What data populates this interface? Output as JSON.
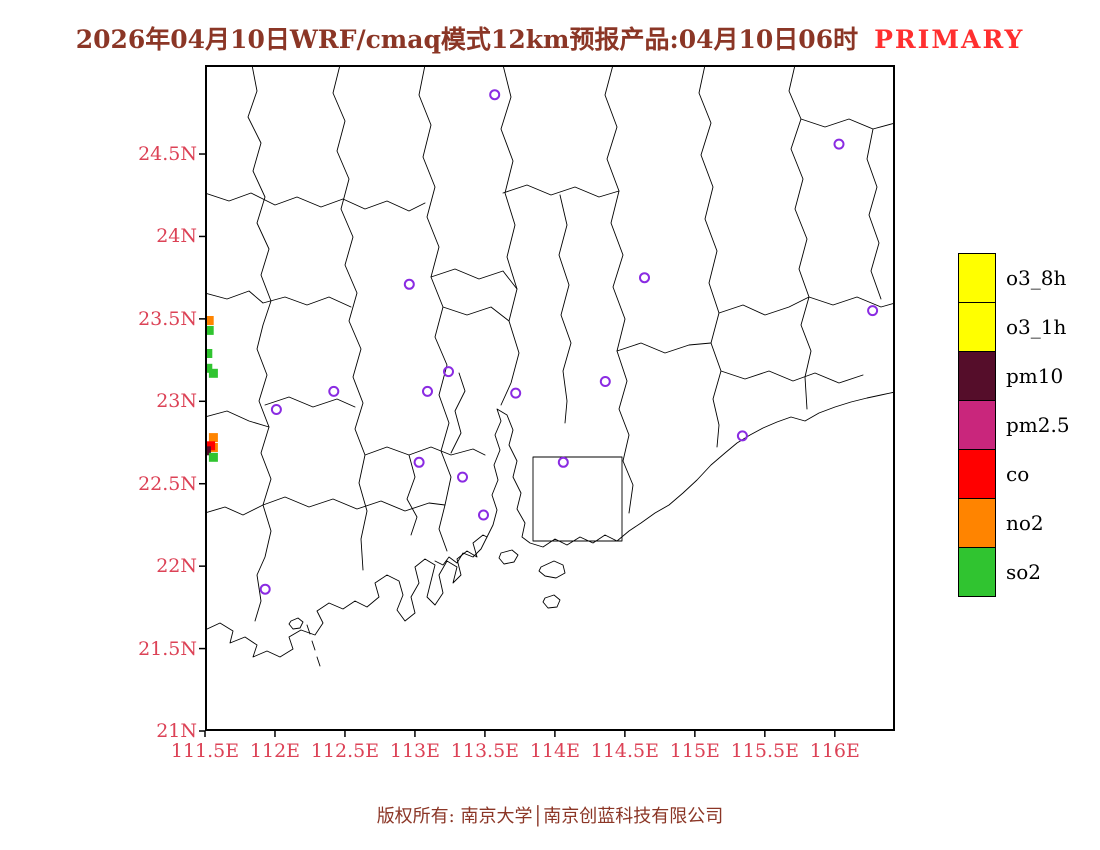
{
  "title": {
    "text": "2026年04月10日WRF/cmaq模式12km预报产品:04月10日06时",
    "tag": "PRIMARY"
  },
  "footer": {
    "text": "版权所有: 南京大学│南京创蓝科技有限公司"
  },
  "palette": {
    "title_color": "#8b3626",
    "tag_color": "#ff2f2f",
    "axis_label_color": "#dc4256",
    "station_color": "#8a2be2",
    "boundary_color": "#000000"
  },
  "map": {
    "lon_min": 111.5,
    "lon_max": 116.43,
    "lat_min": 21.0,
    "lat_max": 25.04,
    "x_ticks": [
      {
        "lon": 111.5,
        "label": "111.5E"
      },
      {
        "lon": 112.0,
        "label": "112E"
      },
      {
        "lon": 112.5,
        "label": "112.5E"
      },
      {
        "lon": 113.0,
        "label": "113E"
      },
      {
        "lon": 113.5,
        "label": "113.5E"
      },
      {
        "lon": 114.0,
        "label": "114E"
      },
      {
        "lon": 114.5,
        "label": "114.5E"
      },
      {
        "lon": 115.0,
        "label": "115E"
      },
      {
        "lon": 115.5,
        "label": "115.5E"
      },
      {
        "lon": 116.0,
        "label": "116E"
      }
    ],
    "y_ticks": [
      {
        "lat": 24.5,
        "label": "24.5N"
      },
      {
        "lat": 24.0,
        "label": "24N"
      },
      {
        "lat": 23.5,
        "label": "23.5N"
      },
      {
        "lat": 23.0,
        "label": "23N"
      },
      {
        "lat": 22.5,
        "label": "22.5N"
      },
      {
        "lat": 22.0,
        "label": "22N"
      },
      {
        "lat": 21.5,
        "label": "21.5N"
      },
      {
        "lat": 21.0,
        "label": "21N"
      }
    ],
    "stations": [
      {
        "lon": 113.57,
        "lat": 24.86
      },
      {
        "lon": 116.03,
        "lat": 24.56
      },
      {
        "lon": 112.96,
        "lat": 23.71
      },
      {
        "lon": 114.64,
        "lat": 23.75
      },
      {
        "lon": 116.27,
        "lat": 23.55
      },
      {
        "lon": 112.42,
        "lat": 23.06
      },
      {
        "lon": 113.09,
        "lat": 23.06
      },
      {
        "lon": 113.24,
        "lat": 23.18
      },
      {
        "lon": 113.72,
        "lat": 23.05
      },
      {
        "lon": 114.36,
        "lat": 23.12
      },
      {
        "lon": 112.01,
        "lat": 22.95
      },
      {
        "lon": 115.34,
        "lat": 22.79
      },
      {
        "lon": 113.03,
        "lat": 22.63
      },
      {
        "lon": 113.34,
        "lat": 22.54
      },
      {
        "lon": 114.06,
        "lat": 22.63
      },
      {
        "lon": 113.49,
        "lat": 22.31
      },
      {
        "lon": 111.93,
        "lat": 21.86
      }
    ],
    "cells": [
      {
        "lon": 111.53,
        "lat": 23.49,
        "pollutant": "no2"
      },
      {
        "lon": 111.53,
        "lat": 23.43,
        "pollutant": "so2"
      },
      {
        "lon": 111.52,
        "lat": 23.29,
        "pollutant": "so2"
      },
      {
        "lon": 111.52,
        "lat": 23.2,
        "pollutant": "so2"
      },
      {
        "lon": 111.56,
        "lat": 23.17,
        "pollutant": "so2"
      },
      {
        "lon": 111.56,
        "lat": 22.78,
        "pollutant": "no2"
      },
      {
        "lon": 111.56,
        "lat": 22.72,
        "pollutant": "no2"
      },
      {
        "lon": 111.54,
        "lat": 22.73,
        "pollutant": "co"
      },
      {
        "lon": 111.51,
        "lat": 22.7,
        "pollutant": "pm10"
      },
      {
        "lon": 111.56,
        "lat": 22.66,
        "pollutant": "so2"
      }
    ]
  },
  "legend": {
    "items": [
      {
        "key": "o3_8h",
        "label": "o3_8h",
        "color": "#ffff00"
      },
      {
        "key": "o3_1h",
        "label": "o3_1h",
        "color": "#ffff00"
      },
      {
        "key": "pm10",
        "label": "pm10",
        "color": "#550d2a"
      },
      {
        "key": "pm2_5",
        "label": "pm2.5",
        "color": "#c9267c"
      },
      {
        "key": "co",
        "label": "co",
        "color": "#ff0000"
      },
      {
        "key": "no2",
        "label": "no2",
        "color": "#ff8400"
      },
      {
        "key": "so2",
        "label": "so2",
        "color": "#30c430"
      }
    ]
  }
}
